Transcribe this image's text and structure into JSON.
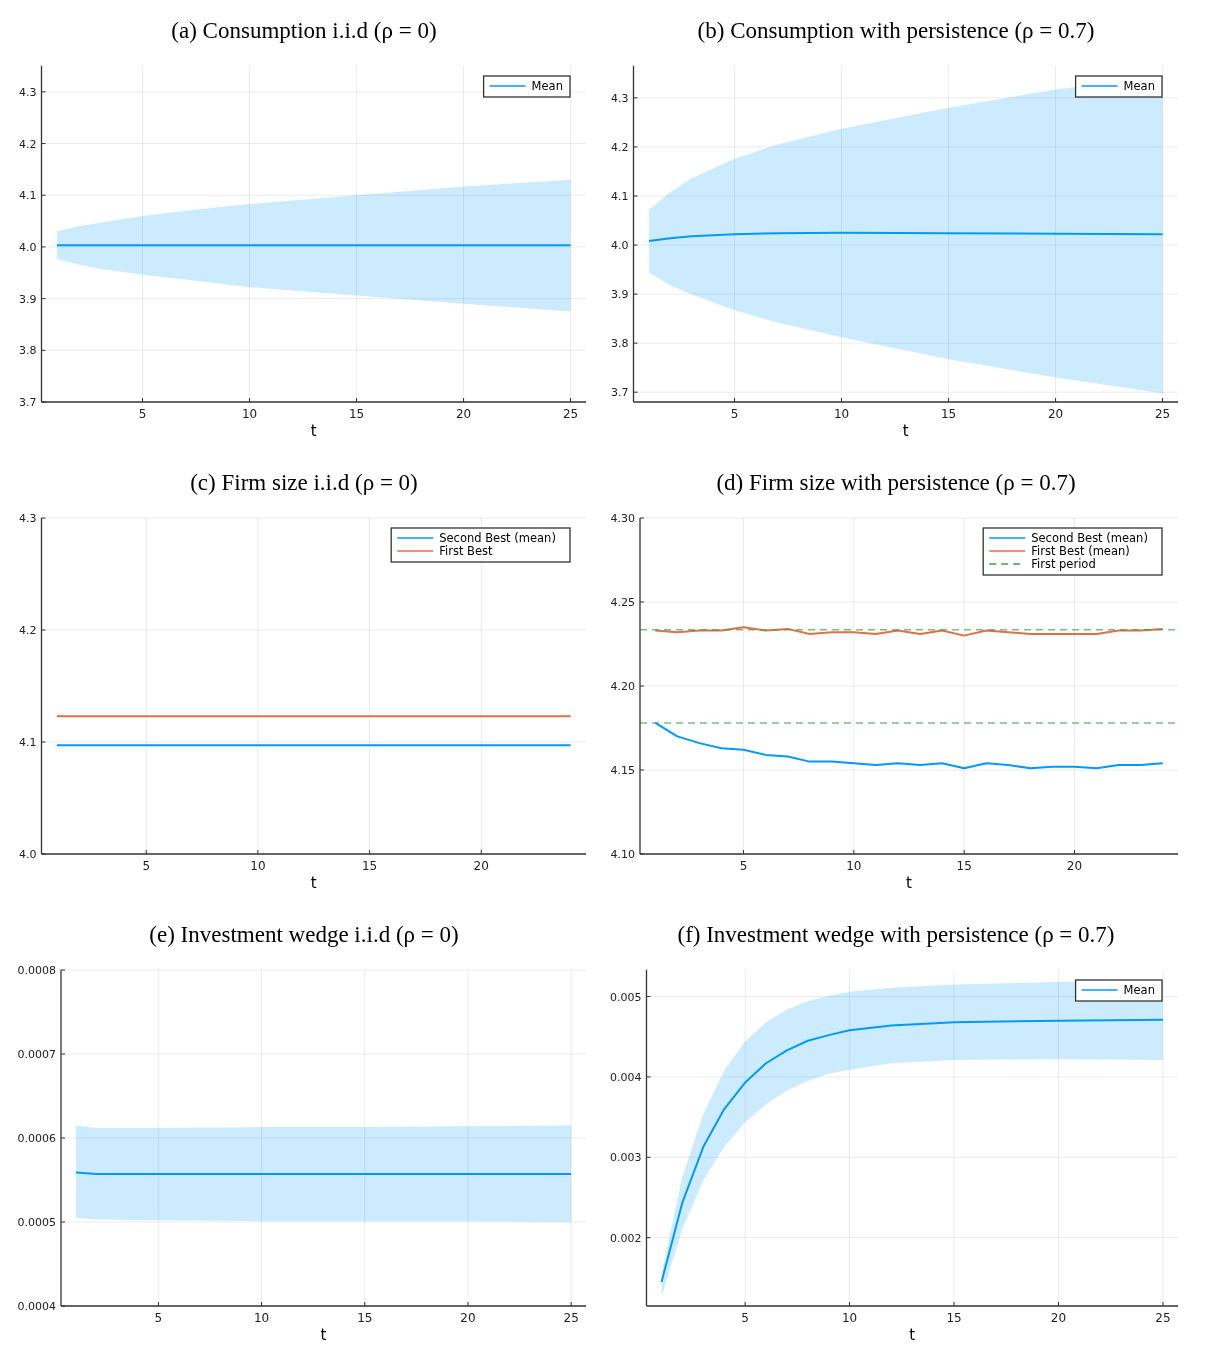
{
  "chart_data": [
    {
      "type": "line",
      "title": "(a) Consumption i.i.d (ρ = 0)",
      "xlabel": "t",
      "xlim": [
        0.28,
        25.72
      ],
      "xticks": [
        5,
        10,
        15,
        20,
        25
      ],
      "ylim": [
        3.7,
        4.35
      ],
      "yticks": [
        3.7,
        3.8,
        3.9,
        {
          "value": 4,
          "label": "4.0"
        },
        4.1,
        4.2,
        4.3
      ],
      "grid": true,
      "legend": "top right",
      "x": [
        1,
        2,
        3,
        5,
        7,
        10,
        15,
        20,
        25
      ],
      "series": [
        {
          "name": "Mean",
          "color": "#009af9",
          "values": [
            4.003,
            4.003,
            4.003,
            4.003,
            4.003,
            4.003,
            4.003,
            4.003,
            4.003
          ],
          "lower": [
            3.977,
            3.966,
            3.958,
            3.946,
            3.937,
            3.922,
            3.906,
            3.89,
            3.875
          ],
          "upper": [
            4.03,
            4.04,
            4.047,
            4.06,
            4.07,
            4.083,
            4.1,
            4.117,
            4.13
          ]
        }
      ]
    },
    {
      "type": "line",
      "title": "(b) Consumption with persistence (ρ = 0.7)",
      "xlabel": "t",
      "xlim": [
        0.28,
        25.72
      ],
      "xticks": [
        5,
        10,
        15,
        20,
        25
      ],
      "ylim": [
        3.68,
        4.365
      ],
      "yticks": [
        3.7,
        3.8,
        3.9,
        {
          "value": 4,
          "label": "4.0"
        },
        4.1,
        4.2,
        4.3
      ],
      "grid": true,
      "legend": "top right",
      "x": [
        1,
        2,
        3,
        5,
        7,
        10,
        15,
        20,
        25
      ],
      "series": [
        {
          "name": "Mean",
          "color": "#009af9",
          "values": [
            4.008,
            4.014,
            4.018,
            4.022,
            4.024,
            4.025,
            4.024,
            4.023,
            4.022
          ],
          "lower": [
            3.944,
            3.918,
            3.899,
            3.867,
            3.842,
            3.812,
            3.767,
            3.73,
            3.698
          ],
          "upper": [
            4.072,
            4.108,
            4.136,
            4.176,
            4.205,
            4.237,
            4.28,
            4.317,
            4.345
          ]
        }
      ]
    },
    {
      "type": "line",
      "title": "(c) Firm size i.i.d (ρ = 0)",
      "xlabel": "t",
      "xlim": [
        0.31,
        24.69
      ],
      "xticks": [
        5,
        10,
        15,
        20
      ],
      "ylim": [
        4.0,
        4.3
      ],
      "yticks": [
        {
          "value": 4,
          "label": "4.0"
        },
        4.1,
        4.2,
        4.3
      ],
      "grid": true,
      "legend": "top right",
      "x": [
        1,
        24
      ],
      "series": [
        {
          "name": "Second Best (mean)",
          "color": "#009af9",
          "values": [
            4.097,
            4.097
          ]
        },
        {
          "name": "First Best",
          "color": "#e26f46",
          "values": [
            4.123,
            4.123
          ]
        }
      ]
    },
    {
      "type": "line",
      "title": "(d) Firm size with persistence (ρ = 0.7)",
      "xlabel": "t",
      "xlim": [
        0.31,
        24.69
      ],
      "xticks": [
        5,
        10,
        15,
        20
      ],
      "ylim": [
        4.1,
        4.3
      ],
      "yticks": [
        {
          "value": 4.1,
          "label": "4.10"
        },
        4.15,
        {
          "value": 4.2,
          "label": "4.20"
        },
        4.25,
        {
          "value": 4.3,
          "label": "4.30"
        }
      ],
      "grid": true,
      "legend": "top right",
      "x": [
        1,
        2,
        3,
        4,
        5,
        6,
        7,
        8,
        9,
        10,
        11,
        12,
        13,
        14,
        15,
        16,
        17,
        18,
        19,
        20,
        21,
        22,
        23,
        24
      ],
      "series": [
        {
          "name": "Second Best (mean)",
          "color": "#009af9",
          "values": [
            4.178,
            4.17,
            4.166,
            4.163,
            4.162,
            4.159,
            4.158,
            4.155,
            4.155,
            4.154,
            4.153,
            4.154,
            4.153,
            4.154,
            4.151,
            4.154,
            4.153,
            4.151,
            4.152,
            4.152,
            4.151,
            4.153,
            4.153,
            4.154
          ]
        },
        {
          "name": "First Best (mean)",
          "color": "#e26f46",
          "values": [
            4.233,
            4.232,
            4.233,
            4.233,
            4.235,
            4.233,
            4.234,
            4.231,
            4.232,
            4.232,
            4.231,
            4.233,
            4.231,
            4.233,
            4.23,
            4.233,
            4.232,
            4.231,
            4.231,
            4.231,
            4.231,
            4.233,
            4.233,
            4.234
          ]
        }
      ],
      "ref_lines": [
        {
          "axis": "y",
          "value": 4.2335,
          "label": "First period",
          "color": "#3da44d",
          "line_style": "dashed"
        },
        {
          "axis": "y",
          "value": 4.178,
          "color": "#3da44d",
          "line_style": "dashed"
        }
      ]
    },
    {
      "type": "line",
      "title": "(e) Investment wedge i.i.d (ρ = 0)",
      "xlabel": "t",
      "xlim": [
        0.28,
        25.72
      ],
      "xticks": [
        5,
        10,
        15,
        20,
        25
      ],
      "ylim": [
        0.0004,
        0.0008
      ],
      "yticks": [
        0.0004,
        0.0005,
        0.0006,
        0.0007,
        0.0008
      ],
      "grid": true,
      "x": [
        1,
        2,
        5,
        10,
        15,
        20,
        25
      ],
      "series": [
        {
          "color": "#009af9",
          "values": [
            0.000559,
            0.000557,
            0.000557,
            0.000557,
            0.000557,
            0.000557,
            0.000557
          ],
          "lower": [
            0.000505,
            0.000503,
            0.000502,
            0.000501,
            0.000501,
            0.000501,
            0.0005
          ],
          "upper": [
            0.000615,
            0.000612,
            0.000612,
            0.000613,
            0.000613,
            0.000614,
            0.000615
          ]
        }
      ]
    },
    {
      "type": "line",
      "title": "(f) Investment wedge with persistence (ρ = 0.7)",
      "xlabel": "t",
      "xlim": [
        0.28,
        25.72
      ],
      "xticks": [
        5,
        10,
        15,
        20,
        25
      ],
      "ylim": [
        0.00115,
        0.00533
      ],
      "yticks": [
        0.002,
        0.003,
        0.004,
        0.005
      ],
      "grid": true,
      "legend": "top right",
      "x": [
        1,
        2,
        3,
        4,
        5,
        6,
        7,
        8,
        9,
        10,
        12,
        15,
        20,
        25
      ],
      "series": [
        {
          "name": "Mean",
          "color": "#009af9",
          "values": [
            0.00145,
            0.00244,
            0.00313,
            0.0036,
            0.00393,
            0.00417,
            0.00433,
            0.00445,
            0.00452,
            0.00458,
            0.00464,
            0.00468,
            0.0047,
            0.00471
          ],
          "lower": [
            0.00127,
            0.00211,
            0.00271,
            0.00313,
            0.00344,
            0.00366,
            0.00383,
            0.00395,
            0.00404,
            0.00409,
            0.00417,
            0.00421,
            0.00422,
            0.00421
          ],
          "upper": [
            0.00155,
            0.00276,
            0.00354,
            0.00408,
            0.00444,
            0.00468,
            0.00484,
            0.00494,
            0.00501,
            0.00506,
            0.00511,
            0.00515,
            0.00518,
            0.0052
          ]
        }
      ]
    }
  ]
}
